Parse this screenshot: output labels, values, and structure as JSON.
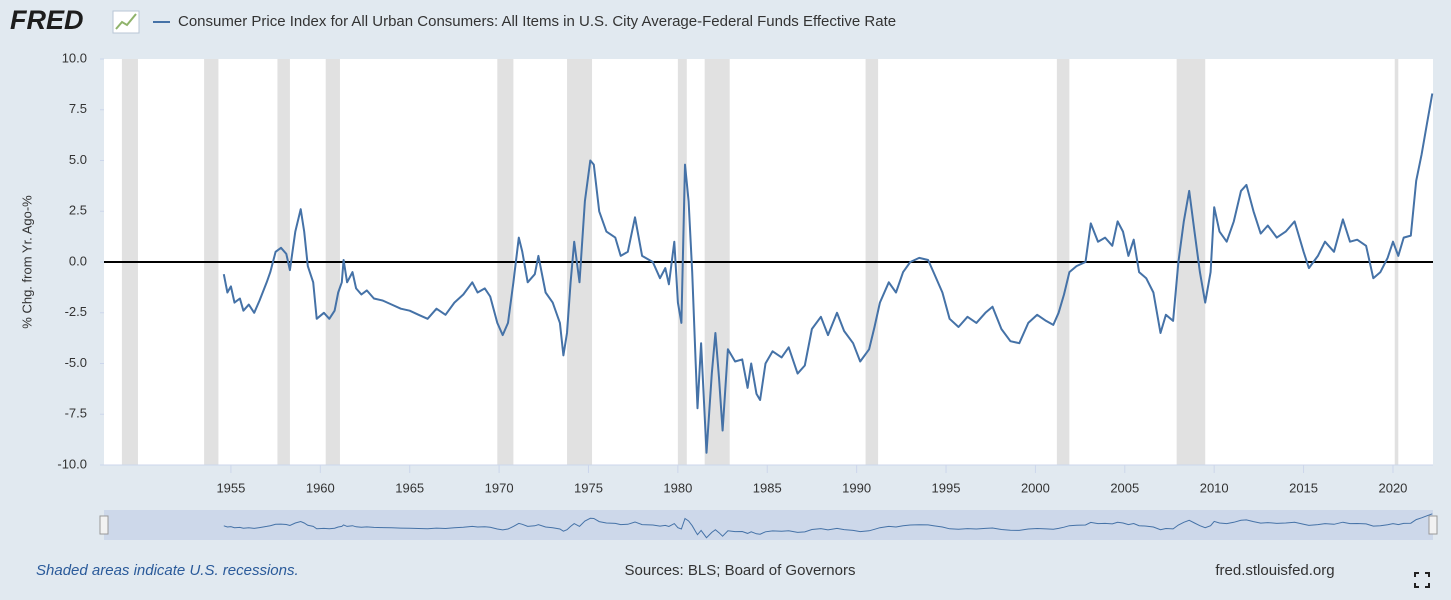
{
  "header": {
    "logo": "FRED"
  },
  "chart_data": {
    "type": "line",
    "y_label": "% Chg. from Yr. Ago-%",
    "x": [
      1954.6,
      1954.8,
      1955.0,
      1955.2,
      1955.5,
      1955.7,
      1956.0,
      1956.3,
      1956.6,
      1957.0,
      1957.2,
      1957.5,
      1957.8,
      1958.1,
      1958.3,
      1958.6,
      1958.9,
      1959.1,
      1959.3,
      1959.6,
      1959.8,
      1960.2,
      1960.5,
      1960.8,
      1961.0,
      1961.2,
      1961.3,
      1961.5,
      1961.8,
      1962.0,
      1962.3,
      1962.6,
      1963.0,
      1963.5,
      1964.0,
      1964.5,
      1965.0,
      1965.5,
      1966.0,
      1966.5,
      1967.0,
      1967.5,
      1968.0,
      1968.5,
      1968.8,
      1969.2,
      1969.5,
      1969.9,
      1970.2,
      1970.5,
      1970.8,
      1971.1,
      1971.3,
      1971.6,
      1972.0,
      1972.2,
      1972.6,
      1973.0,
      1973.4,
      1973.6,
      1973.8,
      1974.0,
      1974.2,
      1974.5,
      1974.8,
      1975.1,
      1975.3,
      1975.6,
      1976.0,
      1976.5,
      1976.8,
      1977.2,
      1977.6,
      1978.0,
      1978.6,
      1979.0,
      1979.3,
      1979.5,
      1979.8,
      1980.0,
      1980.2,
      1980.4,
      1980.6,
      1980.8,
      1981.0,
      1981.1,
      1981.3,
      1981.6,
      1981.9,
      1982.1,
      1982.3,
      1982.5,
      1982.8,
      1983.2,
      1983.6,
      1983.9,
      1984.1,
      1984.4,
      1984.6,
      1984.9,
      1985.3,
      1985.8,
      1986.2,
      1986.7,
      1987.1,
      1987.5,
      1988.0,
      1988.4,
      1988.9,
      1989.3,
      1989.8,
      1990.2,
      1990.7,
      1991.0,
      1991.3,
      1991.8,
      1992.2,
      1992.6,
      1993.0,
      1993.5,
      1994.0,
      1994.3,
      1994.8,
      1995.2,
      1995.7,
      1996.2,
      1996.7,
      1997.2,
      1997.6,
      1998.1,
      1998.6,
      1999.1,
      1999.6,
      2000.1,
      2000.6,
      2001.0,
      2001.3,
      2001.6,
      2001.9,
      2002.3,
      2002.8,
      2003.1,
      2003.5,
      2003.9,
      2004.3,
      2004.6,
      2004.9,
      2005.2,
      2005.5,
      2005.8,
      2006.2,
      2006.6,
      2007.0,
      2007.3,
      2007.7,
      2008.0,
      2008.3,
      2008.6,
      2008.9,
      2009.2,
      2009.5,
      2009.8,
      2010.0,
      2010.3,
      2010.7,
      2011.1,
      2011.5,
      2011.8,
      2012.2,
      2012.6,
      2013.0,
      2013.5,
      2014.0,
      2014.5,
      2015.0,
      2015.3,
      2015.8,
      2016.2,
      2016.7,
      2017.2,
      2017.6,
      2018.0,
      2018.5,
      2018.9,
      2019.3,
      2019.7,
      2020.0,
      2020.3,
      2020.6,
      2021.0,
      2021.3,
      2021.6,
      2021.9,
      2022.2
    ],
    "series": [
      {
        "name": "Consumer Price Index for All Urban Consumers: All Items in U.S. City Average-Federal Funds Effective Rate",
        "color": "#4572a7",
        "values": [
          -0.6,
          -1.5,
          -1.2,
          -2.0,
          -1.8,
          -2.4,
          -2.1,
          -2.5,
          -1.9,
          -1.0,
          -0.5,
          0.5,
          0.7,
          0.4,
          -0.4,
          1.5,
          2.6,
          1.5,
          -0.2,
          -1.0,
          -2.8,
          -2.5,
          -2.8,
          -2.4,
          -1.5,
          -1.0,
          0.1,
          -1.0,
          -0.5,
          -1.3,
          -1.6,
          -1.4,
          -1.8,
          -1.9,
          -2.1,
          -2.3,
          -2.4,
          -2.6,
          -2.8,
          -2.3,
          -2.6,
          -2.0,
          -1.6,
          -1.0,
          -1.5,
          -1.3,
          -1.7,
          -3.0,
          -3.6,
          -3.0,
          -1.0,
          1.2,
          0.5,
          -1.0,
          -0.6,
          0.3,
          -1.5,
          -2.0,
          -3.0,
          -4.6,
          -3.5,
          -1.0,
          1.0,
          -1.0,
          3.0,
          5.0,
          4.8,
          2.5,
          1.5,
          1.2,
          0.3,
          0.5,
          2.2,
          0.3,
          0.0,
          -0.8,
          -0.3,
          -1.1,
          1.0,
          -2.0,
          -3.0,
          4.8,
          3.0,
          -0.5,
          -5.0,
          -7.2,
          -4.0,
          -9.4,
          -5.5,
          -3.5,
          -5.7,
          -8.3,
          -4.3,
          -4.9,
          -4.8,
          -6.2,
          -5.0,
          -6.5,
          -6.8,
          -5.0,
          -4.4,
          -4.7,
          -4.2,
          -5.5,
          -5.1,
          -3.3,
          -2.7,
          -3.6,
          -2.5,
          -3.4,
          -4.0,
          -4.9,
          -4.3,
          -3.2,
          -2.0,
          -1.0,
          -1.5,
          -0.5,
          0.0,
          0.2,
          0.1,
          -0.5,
          -1.5,
          -2.8,
          -3.2,
          -2.7,
          -3.0,
          -2.5,
          -2.2,
          -3.3,
          -3.9,
          -4.0,
          -3.0,
          -2.6,
          -2.9,
          -3.1,
          -2.5,
          -1.6,
          -0.5,
          -0.2,
          0.0,
          1.9,
          1.0,
          1.2,
          0.8,
          2.0,
          1.5,
          0.3,
          1.1,
          -0.5,
          -0.8,
          -1.5,
          -3.5,
          -2.6,
          -2.9,
          0.0,
          2.0,
          3.5,
          1.5,
          -0.5,
          -2.0,
          -0.5,
          2.7,
          1.5,
          1.0,
          2.0,
          3.5,
          3.8,
          2.5,
          1.4,
          1.8,
          1.2,
          1.5,
          2.0,
          0.5,
          -0.3,
          0.3,
          1.0,
          0.5,
          2.1,
          1.0,
          1.1,
          0.8,
          -0.8,
          -0.5,
          0.2,
          1.0,
          0.3,
          1.2,
          1.3,
          4.0,
          5.3,
          6.8,
          8.3
        ]
      }
    ],
    "xlim": [
      1947.9,
      2022.24
    ],
    "ylim": [
      -10,
      10
    ],
    "xticks": [
      1955,
      1960,
      1965,
      1970,
      1975,
      1980,
      1985,
      1990,
      1995,
      2000,
      2005,
      2010,
      2015,
      2020
    ],
    "yticks": [
      {
        "value": -10,
        "label": "-10.0"
      },
      {
        "value": -7.5,
        "label": "-7.5"
      },
      {
        "value": -5,
        "label": "-5.0"
      },
      {
        "value": -2.5,
        "label": "-2.5"
      },
      {
        "value": 0,
        "label": "0.0"
      },
      {
        "value": 2.5,
        "label": "2.5"
      },
      {
        "value": 5,
        "label": "5.0"
      },
      {
        "value": 7.5,
        "label": "7.5"
      },
      {
        "value": 10,
        "label": "10.0"
      }
    ],
    "hline": 0,
    "recessions": [
      [
        1948.9,
        1949.8
      ],
      [
        1953.5,
        1954.3
      ],
      [
        1957.6,
        1958.3
      ],
      [
        1960.3,
        1961.1
      ],
      [
        1969.9,
        1970.8
      ],
      [
        1973.8,
        1975.2
      ],
      [
        1980.0,
        1980.5
      ],
      [
        1981.5,
        1982.9
      ],
      [
        1990.5,
        1991.2
      ],
      [
        2001.2,
        2001.9
      ],
      [
        2007.9,
        2009.5
      ],
      [
        2020.1,
        2020.3
      ]
    ],
    "recession_color": "#e1e1e1"
  },
  "footer": {
    "note": "Shaded areas indicate U.S. recessions.",
    "sources": "Sources: BLS; Board of Governors",
    "site": "fred.stlouisfed.org"
  }
}
